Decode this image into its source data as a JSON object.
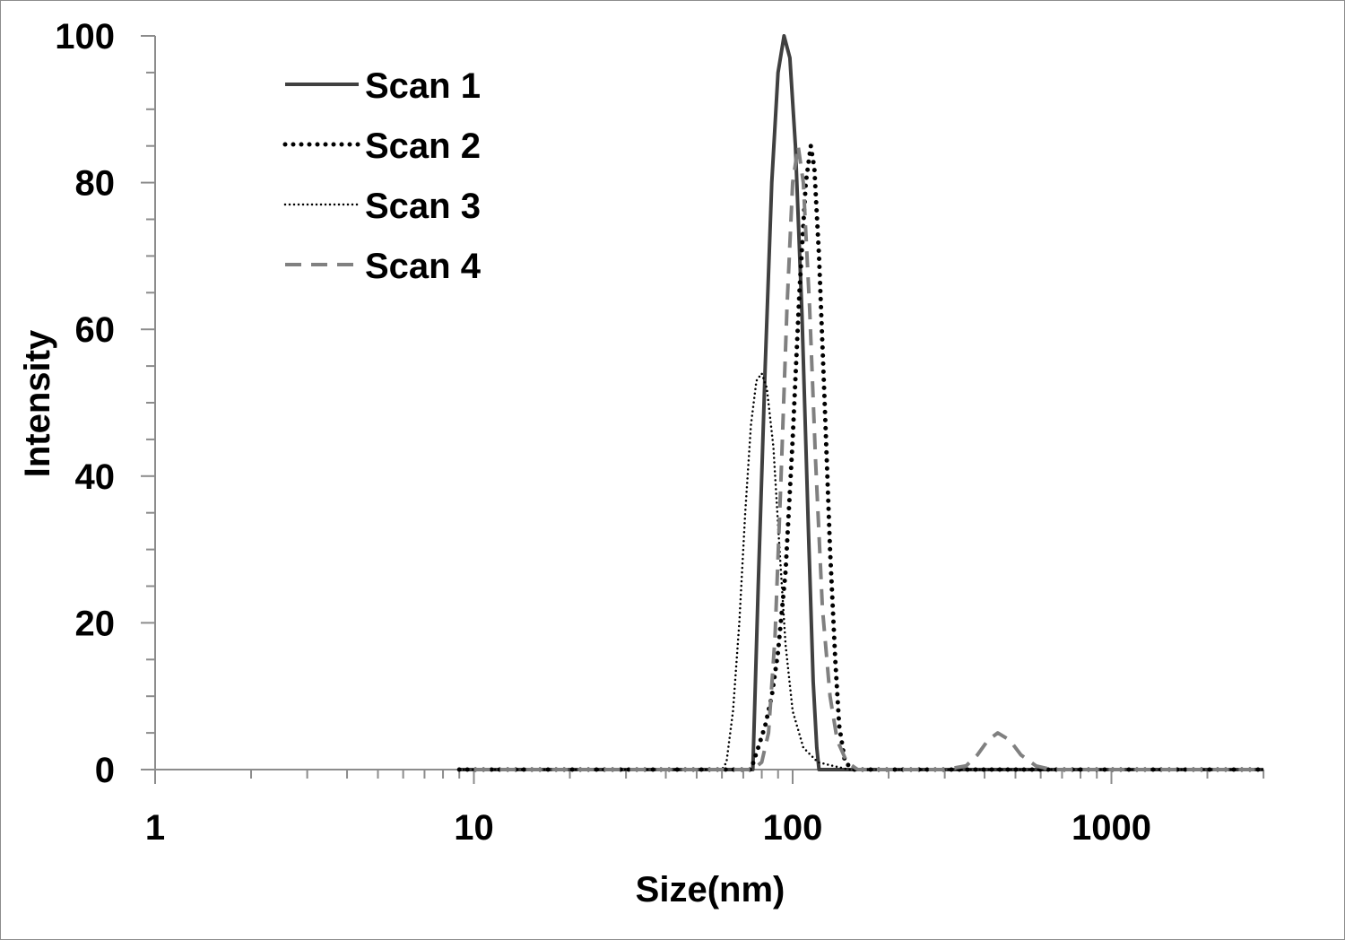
{
  "chart_data": {
    "type": "line",
    "title": "",
    "xlabel": "Size(nm)",
    "ylabel": "Intensity",
    "x_scale": "log",
    "xlim": [
      1,
      3000
    ],
    "ylim": [
      0,
      100
    ],
    "x_ticks": [
      1,
      10,
      100,
      1000
    ],
    "x_tick_labels": [
      "1",
      "10",
      "100",
      "1000"
    ],
    "y_ticks": [
      0,
      20,
      40,
      60,
      80,
      100
    ],
    "y_tick_labels": [
      "0",
      "20",
      "40",
      "60",
      "80",
      "100"
    ],
    "grid": false,
    "legend_position": "top-left",
    "series": [
      {
        "name": "Scan 1",
        "color": "#404040",
        "dash": "solid",
        "points": [
          [
            9,
            0
          ],
          [
            60,
            0
          ],
          [
            72,
            0
          ],
          [
            75,
            0
          ],
          [
            78,
            25
          ],
          [
            82,
            55
          ],
          [
            86,
            80
          ],
          [
            90,
            95
          ],
          [
            94,
            100
          ],
          [
            98,
            97
          ],
          [
            102,
            85
          ],
          [
            107,
            62
          ],
          [
            112,
            33
          ],
          [
            116,
            12
          ],
          [
            119,
            3
          ],
          [
            121,
            0
          ],
          [
            200,
            0
          ],
          [
            500,
            0
          ],
          [
            1000,
            0
          ],
          [
            3000,
            0
          ]
        ]
      },
      {
        "name": "Scan 2",
        "color": "#000000",
        "dash": "dotted-bold",
        "points": [
          [
            9,
            0
          ],
          [
            50,
            0
          ],
          [
            74,
            0
          ],
          [
            78,
            3
          ],
          [
            82,
            6
          ],
          [
            86,
            10
          ],
          [
            90,
            16
          ],
          [
            95,
            27
          ],
          [
            100,
            45
          ],
          [
            105,
            65
          ],
          [
            110,
            80
          ],
          [
            114,
            85
          ],
          [
            117,
            82
          ],
          [
            121,
            70
          ],
          [
            126,
            50
          ],
          [
            131,
            30
          ],
          [
            136,
            15
          ],
          [
            140,
            6
          ],
          [
            146,
            1
          ],
          [
            155,
            0
          ],
          [
            300,
            0
          ],
          [
            1000,
            0
          ],
          [
            3000,
            0
          ]
        ]
      },
      {
        "name": "Scan 3",
        "color": "#000000",
        "dash": "dotted-fine",
        "points": [
          [
            9,
            0
          ],
          [
            60,
            0
          ],
          [
            62,
            1
          ],
          [
            65,
            8
          ],
          [
            68,
            20
          ],
          [
            71,
            35
          ],
          [
            74,
            47
          ],
          [
            77,
            53
          ],
          [
            80,
            54
          ],
          [
            83,
            52
          ],
          [
            87,
            44
          ],
          [
            91,
            30
          ],
          [
            95,
            17
          ],
          [
            100,
            8
          ],
          [
            108,
            3
          ],
          [
            120,
            1
          ],
          [
            150,
            0
          ],
          [
            300,
            0
          ],
          [
            1000,
            0
          ],
          [
            3000,
            0
          ]
        ]
      },
      {
        "name": "Scan 4",
        "color": "#808080",
        "dash": "dashed",
        "points": [
          [
            10,
            0
          ],
          [
            75,
            0
          ],
          [
            80,
            1
          ],
          [
            84,
            5
          ],
          [
            88,
            18
          ],
          [
            92,
            40
          ],
          [
            96,
            63
          ],
          [
            100,
            80
          ],
          [
            104,
            85
          ],
          [
            108,
            80
          ],
          [
            113,
            63
          ],
          [
            118,
            42
          ],
          [
            124,
            22
          ],
          [
            131,
            10
          ],
          [
            138,
            4
          ],
          [
            148,
            1
          ],
          [
            160,
            0
          ],
          [
            300,
            0
          ],
          [
            350,
            0.5
          ],
          [
            380,
            2
          ],
          [
            410,
            4
          ],
          [
            440,
            5
          ],
          [
            480,
            4
          ],
          [
            520,
            2
          ],
          [
            580,
            0.5
          ],
          [
            650,
            0
          ],
          [
            1000,
            0
          ],
          [
            3000,
            0
          ]
        ]
      }
    ]
  }
}
